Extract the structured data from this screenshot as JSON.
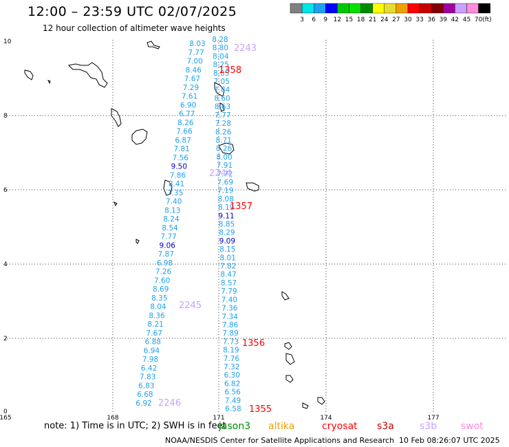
{
  "header": {
    "title": "12:00 – 23:59 UTC 02/07/2025",
    "subtitle": "12 hour collection of altimeter wave heights"
  },
  "colorscale": {
    "colors": [
      "#808080",
      "#00e5e5",
      "#1ea0f0",
      "#0000ff",
      "#00c800",
      "#00e000",
      "#008c00",
      "#ffff00",
      "#e6dc32",
      "#f0a000",
      "#ff0000",
      "#c80000",
      "#800000",
      "#a000a0",
      "#c8a0ff",
      "#ff8cdc",
      "#000000"
    ],
    "labels": [
      "3",
      "6",
      "9",
      "12",
      "15",
      "18",
      "21",
      "24",
      "27",
      "30",
      "33",
      "36",
      "39",
      "42",
      "45",
      "70"
    ],
    "unit": "(ft)"
  },
  "axes": {
    "x_ticks": [
      "165",
      "168",
      "171",
      "174",
      "177"
    ],
    "y_ticks": [
      "0",
      "2",
      "4",
      "6",
      "8",
      "10"
    ]
  },
  "tracks": [
    {
      "color": "#1ea0f0",
      "values": [
        "8.03",
        "7.77",
        "7.00",
        "8.46",
        "7.67",
        "7.29",
        "7.61",
        "6.90",
        "6.77",
        "8.26",
        "7.66",
        "6.87",
        "7.81",
        "7.56",
        "9.50",
        "7.86",
        "8.41",
        "7.35",
        "7.40",
        "8.13",
        "8.24",
        "8.54",
        "7.77",
        "9.06",
        "7.87",
        "6.98",
        "7.26",
        "7.60",
        "8.69",
        "8.35",
        "8.04",
        "8.36",
        "8.21",
        "7.67",
        "6.88",
        "6.94",
        "7.98",
        "6.42",
        "7.83",
        "6.83",
        "6.68",
        "6.92"
      ]
    },
    {
      "color": "#1ea0f0",
      "values": [
        "8.28",
        "8.80",
        "8.04",
        "8.25",
        "8.05",
        "7.05",
        "7.84",
        "8.60",
        "8.63",
        "7.77",
        "7.28",
        "8.26",
        "8.71",
        "8.26",
        "8.00",
        "7.91",
        "7.72",
        "7.69",
        "7.19",
        "8.08",
        "8.19",
        "9.11",
        "8.85",
        "8.29",
        "9.09",
        "8.15",
        "8.01",
        "7.82",
        "8.47",
        "8.57",
        "7.79",
        "7.40",
        "7.36",
        "7.34",
        "7.86",
        "7.89",
        "7.73",
        "8.19",
        "7.76",
        "7.32",
        "6.30",
        "6.82",
        "6.56",
        "7.49",
        "6.58"
      ]
    }
  ],
  "pass_ids": [
    {
      "text": "2243",
      "color": "#c8a0ff"
    },
    {
      "text": "1358",
      "color": "#ff0000"
    },
    {
      "text": "2244",
      "color": "#c8a0ff"
    },
    {
      "text": "1357",
      "color": "#ff0000"
    },
    {
      "text": "2245",
      "color": "#c8a0ff"
    },
    {
      "text": "1356",
      "color": "#ff0000"
    },
    {
      "text": "2246",
      "color": "#c8a0ff"
    },
    {
      "text": "1355",
      "color": "#ff0000"
    }
  ],
  "footer": {
    "note": "note:  1) Time is in UTC;  2) SWH is in feet",
    "credit": "NOAA/NESDIS Center for Satellite Applications and Research",
    "timestamp": "10 Feb 08:26:07 UTC 2025",
    "satellites": [
      {
        "name": "jason3",
        "color": "#008c00"
      },
      {
        "name": "altika",
        "color": "#f0a000"
      },
      {
        "name": "cryosat",
        "color": "#ff0000"
      },
      {
        "name": "s3a",
        "color": "#c80000"
      },
      {
        "name": "s3b",
        "color": "#c8a0ff"
      },
      {
        "name": "swot",
        "color": "#ff8cdc"
      }
    ]
  }
}
